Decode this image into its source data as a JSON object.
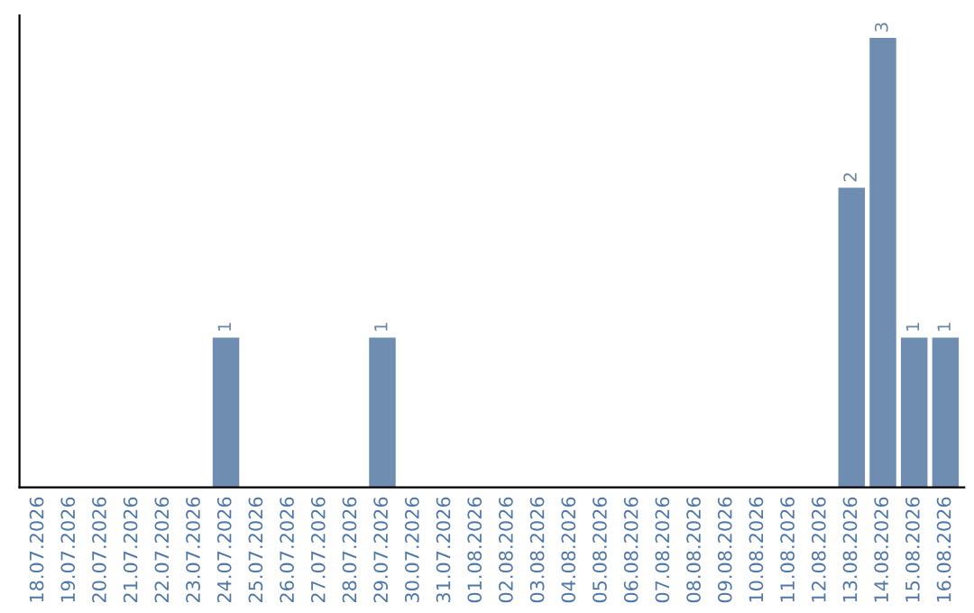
{
  "chart_data": {
    "type": "bar",
    "categories": [
      "18.07.2026",
      "19.07.2026",
      "20.07.2026",
      "21.07.2026",
      "22.07.2026",
      "23.07.2026",
      "24.07.2026",
      "25.07.2026",
      "26.07.2026",
      "27.07.2026",
      "28.07.2026",
      "29.07.2026",
      "30.07.2026",
      "31.07.2026",
      "01.08.2026",
      "02.08.2026",
      "03.08.2026",
      "04.08.2026",
      "05.08.2026",
      "06.08.2026",
      "07.08.2026",
      "08.08.2026",
      "09.08.2026",
      "10.08.2026",
      "11.08.2026",
      "12.08.2026",
      "13.08.2026",
      "14.08.2026",
      "15.08.2026",
      "16.08.2026"
    ],
    "values": [
      0,
      0,
      0,
      0,
      0,
      0,
      1,
      0,
      0,
      0,
      0,
      1,
      0,
      0,
      0,
      0,
      0,
      0,
      0,
      0,
      0,
      0,
      0,
      0,
      0,
      0,
      2,
      3,
      1,
      1
    ],
    "value_labels": [
      null,
      null,
      null,
      null,
      null,
      null,
      "1",
      null,
      null,
      null,
      null,
      "1",
      null,
      null,
      null,
      null,
      null,
      null,
      null,
      null,
      null,
      null,
      null,
      null,
      null,
      null,
      "2",
      "3",
      "1",
      "1"
    ],
    "color": "#6e8db0",
    "tick_labels": "x",
    "grid": false
  }
}
